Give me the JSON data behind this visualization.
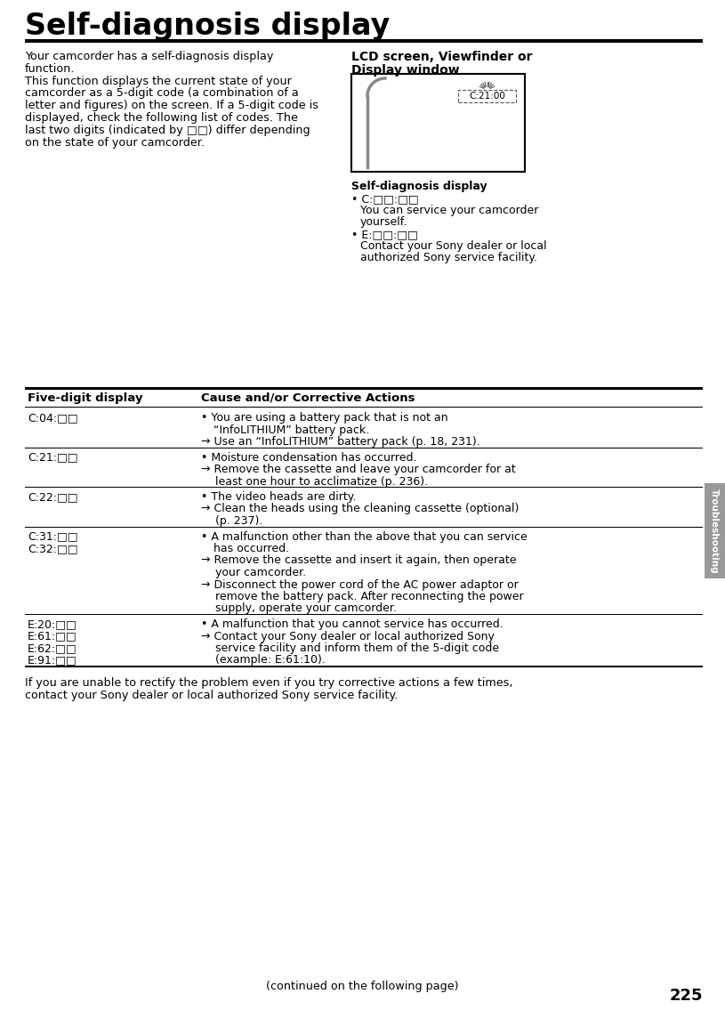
{
  "title": "Self-diagnosis display",
  "page_number": "225",
  "sidebar_label": "Troubleshooting",
  "bg_color": "#ffffff",
  "title_fontsize": 24,
  "body_left_text": [
    "Your camcorder has a self-diagnosis display",
    "function.",
    "This function displays the current state of your",
    "camcorder as a 5-digit code (a combination of a",
    "letter and figures) on the screen. If a 5-digit code is",
    "displayed, check the following list of codes. The",
    "last two digits (indicated by □□) differ depending",
    "on the state of your camcorder."
  ],
  "lcd_title_line1": "LCD screen, Viewfinder or",
  "lcd_title_line2": "Display window",
  "lcd_display_code": "C:21:00",
  "self_diag_label": "Self-diagnosis display",
  "self_diag_c_bullet": "• C:□□:□□",
  "self_diag_c_desc1": "You can service your camcorder",
  "self_diag_c_desc2": "yourself.",
  "self_diag_e_bullet": "• E:□□:□□",
  "self_diag_e_desc1": "Contact your Sony dealer or local",
  "self_diag_e_desc2": "authorized Sony service facility.",
  "table_header_col1": "Five-digit display",
  "table_header_col2": "Cause and/or Corrective Actions",
  "table_rows": [
    {
      "code": "C:04:□□",
      "actions": [
        {
          "bullet": "•",
          "text": "You are using a battery pack that is not an",
          "cont": [
            "“InfoLITHIUM” battery pack."
          ]
        },
        {
          "bullet": "→",
          "text": "Use an “InfoLITHIUM” battery pack (p. 18, 231).",
          "cont": []
        }
      ]
    },
    {
      "code": "C:21:□□",
      "actions": [
        {
          "bullet": "•",
          "text": "Moisture condensation has occurred.",
          "cont": []
        },
        {
          "bullet": "→",
          "text": "Remove the cassette and leave your camcorder for at",
          "cont": [
            "least one hour to acclimatize (p. 236)."
          ]
        }
      ]
    },
    {
      "code": "C:22:□□",
      "actions": [
        {
          "bullet": "•",
          "text": "The video heads are dirty.",
          "cont": []
        },
        {
          "bullet": "→",
          "text": "Clean the heads using the cleaning cassette (optional)",
          "cont": [
            "(p. 237)."
          ]
        }
      ]
    },
    {
      "code": "C:31:□□\nC:32:□□",
      "actions": [
        {
          "bullet": "•",
          "text": "A malfunction other than the above that you can service",
          "cont": [
            "has occurred."
          ]
        },
        {
          "bullet": "→",
          "text": "Remove the cassette and insert it again, then operate",
          "cont": [
            "your camcorder."
          ]
        },
        {
          "bullet": "→",
          "text": "Disconnect the power cord of the AC power adaptor or",
          "cont": [
            "remove the battery pack. After reconnecting the power",
            "supply, operate your camcorder."
          ]
        }
      ]
    },
    {
      "code": "E:20:□□\nE:61:□□\nE:62:□□\nE:91:□□",
      "actions": [
        {
          "bullet": "•",
          "text": "A malfunction that you cannot service has occurred.",
          "cont": []
        },
        {
          "bullet": "→",
          "text": "Contact your Sony dealer or local authorized Sony",
          "cont": [
            "service facility and inform them of the 5-digit code",
            "(example: E:61:10)."
          ]
        }
      ]
    }
  ],
  "footer_line1": "If you are unable to rectify the problem even if you try corrective actions a few times,",
  "footer_line2": "contact your Sony dealer or local authorized Sony service facility.",
  "continued_text": "(continued on the following page)"
}
